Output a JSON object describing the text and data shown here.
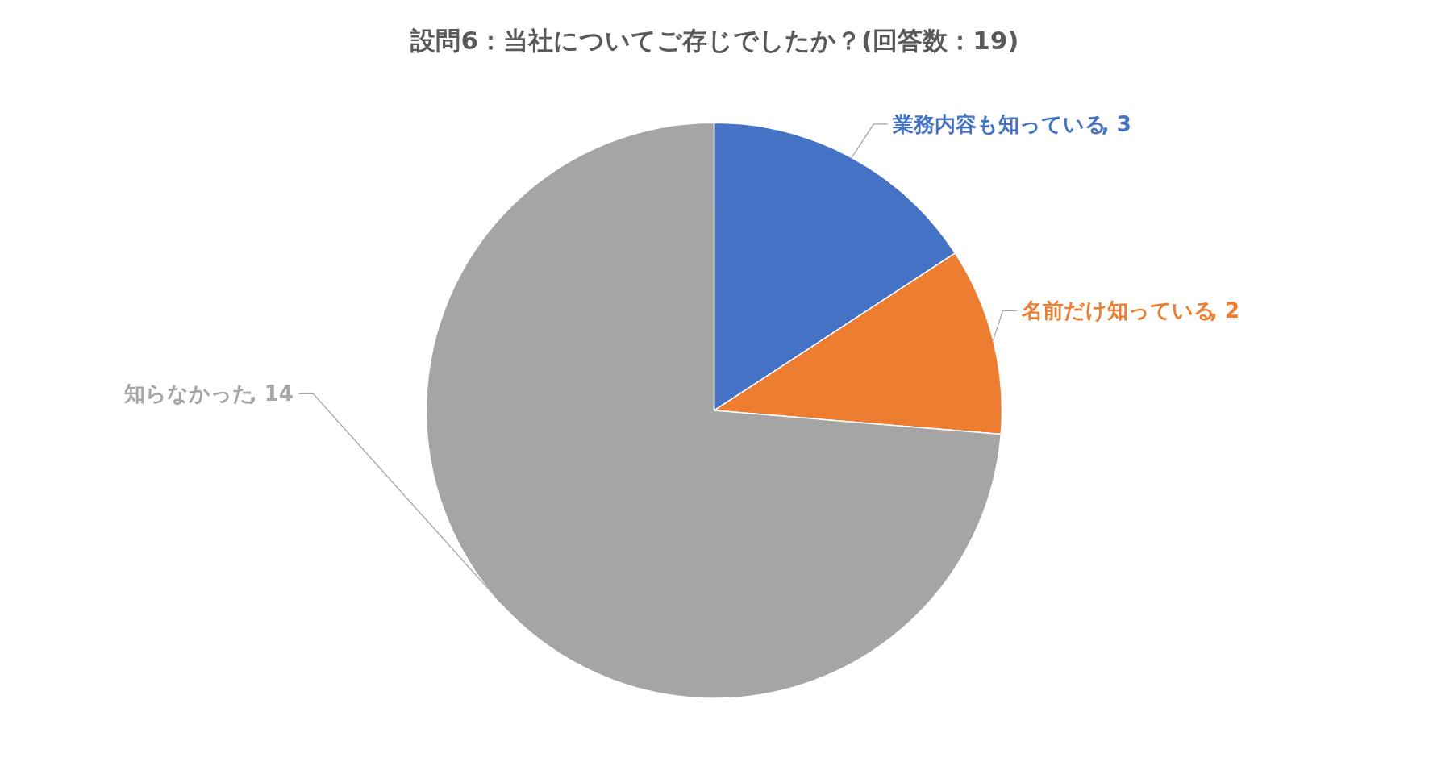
{
  "chart_data": {
    "type": "pie",
    "title": "設問6：当社についてご存じでしたか？(回答数：19)",
    "categories": [
      "業務内容も知っている",
      "名前だけ知っている",
      "知らなかった"
    ],
    "values": [
      3,
      2,
      14
    ],
    "colors": [
      "#4472c4",
      "#ed7d31",
      "#a5a5a5"
    ],
    "value_labels": [
      ", 3",
      ", 2",
      ", 14"
    ],
    "legend": false
  }
}
